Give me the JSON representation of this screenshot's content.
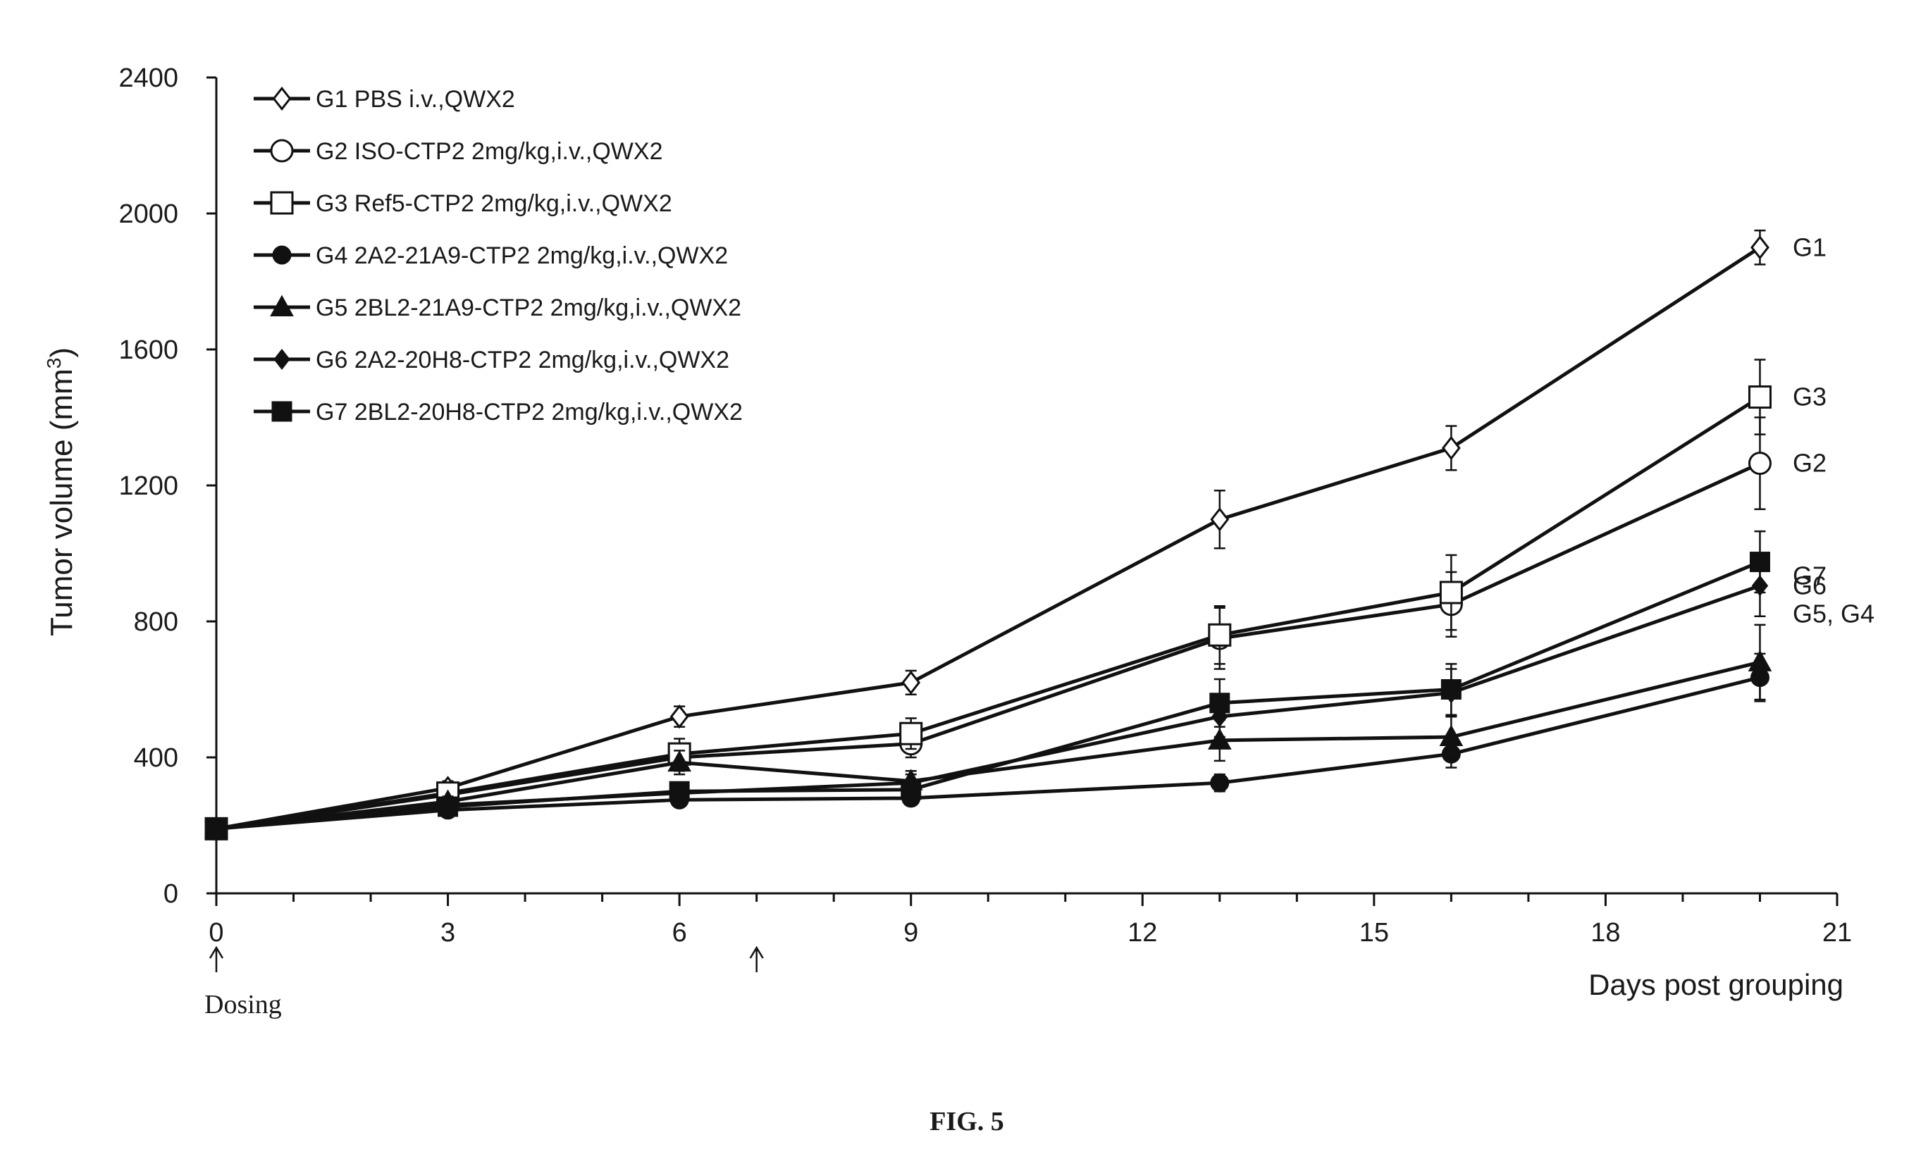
{
  "chart_data": {
    "type": "line",
    "xlabel": "Days post grouping",
    "ylabel": "Tumor volume (mm",
    "ylabel_sup": "3",
    "ylabel_close": ")",
    "xlim": [
      0,
      21
    ],
    "ylim": [
      0,
      2400
    ],
    "xticks": [
      0,
      3,
      6,
      9,
      12,
      15,
      18,
      21
    ],
    "yticks": [
      0,
      400,
      800,
      1200,
      1600,
      2000,
      2400
    ],
    "x": [
      0,
      3,
      6,
      9,
      13,
      16,
      20
    ],
    "grid": false,
    "legend_position": "top-left",
    "series": [
      {
        "name": "G1 PBS i.v.,QWX2",
        "end_label": "G1",
        "marker": "diamond-open",
        "values": [
          190,
          310,
          520,
          620,
          1100,
          1310,
          1900
        ],
        "err": [
          10,
          20,
          30,
          35,
          85,
          65,
          50
        ]
      },
      {
        "name": "G2 ISO-CTP2 2mg/kg,i.v.,QWX2",
        "end_label": "G2",
        "marker": "circle-open",
        "values": [
          190,
          290,
          400,
          440,
          750,
          850,
          1265
        ],
        "err": [
          10,
          15,
          40,
          40,
          90,
          95,
          135
        ]
      },
      {
        "name": "G3 Ref5-CTP2 2mg/kg,i.v.,QWX2",
        "end_label": "G3",
        "marker": "square-open",
        "values": [
          190,
          295,
          410,
          470,
          760,
          885,
          1460
        ],
        "err": [
          10,
          15,
          45,
          45,
          85,
          110,
          110
        ]
      },
      {
        "name": "G4 2A2-21A9-CTP2 2mg/kg,i.v.,QWX2",
        "end_label": "G5, G4",
        "marker": "circle-filled",
        "values": [
          190,
          245,
          275,
          280,
          325,
          410,
          635
        ],
        "err": [
          10,
          10,
          15,
          15,
          25,
          40,
          70
        ]
      },
      {
        "name": "G5 2BL2-21A9-CTP2 2mg/kg,i.v.,QWX2",
        "end_label": "",
        "marker": "triangle-filled",
        "values": [
          190,
          270,
          385,
          330,
          450,
          460,
          680
        ],
        "err": [
          10,
          15,
          35,
          30,
          60,
          60,
          110
        ]
      },
      {
        "name": "G6 2A2-20H8-CTP2 2mg/kg,i.v.,QWX2",
        "end_label": "G6",
        "marker": "diamond-filled",
        "values": [
          190,
          260,
          295,
          325,
          520,
          590,
          905
        ],
        "err": [
          10,
          15,
          20,
          25,
          60,
          70,
          90
        ]
      },
      {
        "name": "G7 2BL2-20H8-CTP2 2mg/kg,i.v.,QWX2",
        "end_label": "G7",
        "marker": "square-filled",
        "values": [
          190,
          255,
          300,
          305,
          560,
          600,
          975
        ],
        "err": [
          10,
          15,
          25,
          25,
          70,
          75,
          90
        ]
      }
    ],
    "dosing_days": [
      0,
      7
    ],
    "annotation": "Dosing"
  },
  "figure_label": "FIG. 5"
}
